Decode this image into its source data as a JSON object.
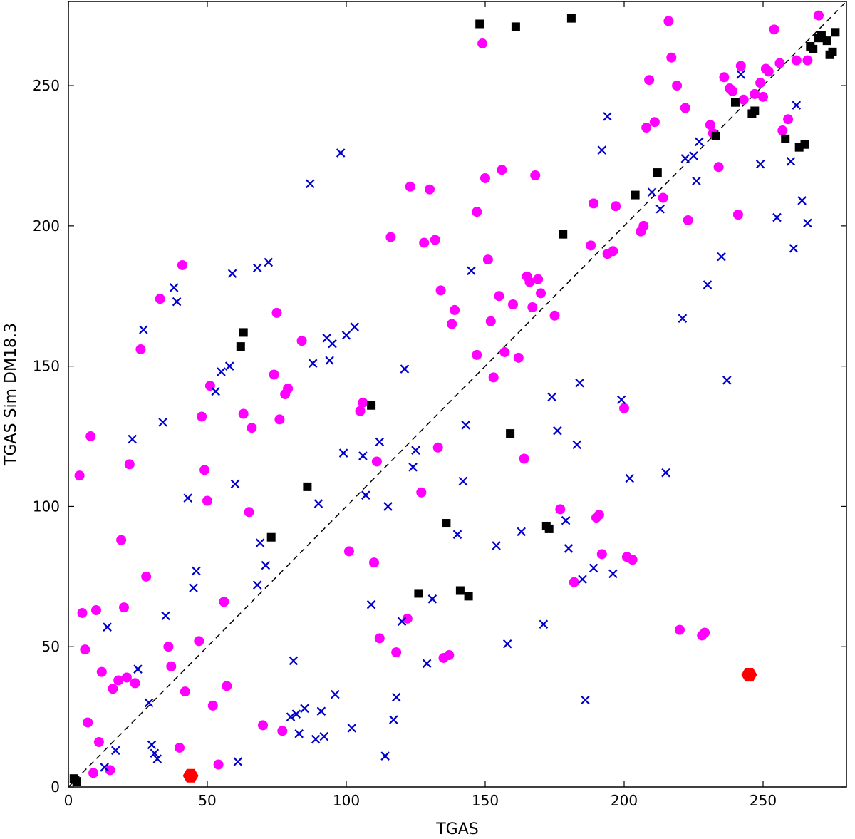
{
  "chart_data": {
    "type": "scatter",
    "xlabel": "TGAS",
    "ylabel": "TGAS Sim DM18.3",
    "xlim": [
      0,
      280
    ],
    "ylim": [
      0,
      280
    ],
    "xticks": [
      0,
      50,
      100,
      150,
      200,
      250
    ],
    "yticks": [
      0,
      50,
      100,
      150,
      200,
      250
    ],
    "grid": false,
    "legend": "none",
    "reference_line": {
      "style": "dashed",
      "color": "#000000",
      "from": [
        0,
        0
      ],
      "to": [
        280,
        280
      ]
    },
    "colors": {
      "circle": "#ff00ff",
      "cross": "#0000cc",
      "square": "#000000",
      "hexagon": "#ff0000"
    },
    "series": [
      {
        "marker": "circle",
        "points": [
          [
            4,
            111
          ],
          [
            5,
            62
          ],
          [
            6,
            49
          ],
          [
            7,
            23
          ],
          [
            8,
            125
          ],
          [
            9,
            5
          ],
          [
            10,
            63
          ],
          [
            11,
            16
          ],
          [
            12,
            41
          ],
          [
            15,
            6
          ],
          [
            16,
            35
          ],
          [
            18,
            38
          ],
          [
            19,
            88
          ],
          [
            20,
            64
          ],
          [
            21,
            39
          ],
          [
            22,
            115
          ],
          [
            24,
            37
          ],
          [
            26,
            156
          ],
          [
            28,
            75
          ],
          [
            33,
            174
          ],
          [
            36,
            50
          ],
          [
            37,
            43
          ],
          [
            40,
            14
          ],
          [
            41,
            186
          ],
          [
            42,
            34
          ],
          [
            47,
            52
          ],
          [
            48,
            132
          ],
          [
            49,
            113
          ],
          [
            50,
            102
          ],
          [
            51,
            143
          ],
          [
            52,
            29
          ],
          [
            54,
            8
          ],
          [
            56,
            66
          ],
          [
            57,
            36
          ],
          [
            63,
            133
          ],
          [
            65,
            98
          ],
          [
            66,
            128
          ],
          [
            70,
            22
          ],
          [
            74,
            147
          ],
          [
            75,
            169
          ],
          [
            76,
            131
          ],
          [
            78,
            140
          ],
          [
            79,
            142
          ],
          [
            77,
            20
          ],
          [
            84,
            159
          ],
          [
            101,
            84
          ],
          [
            105,
            134
          ],
          [
            106,
            137
          ],
          [
            110,
            80
          ],
          [
            111,
            116
          ],
          [
            112,
            53
          ],
          [
            116,
            196
          ],
          [
            118,
            48
          ],
          [
            122,
            60
          ],
          [
            123,
            214
          ],
          [
            127,
            105
          ],
          [
            128,
            194
          ],
          [
            130,
            213
          ],
          [
            132,
            195
          ],
          [
            133,
            121
          ],
          [
            134,
            177
          ],
          [
            135,
            46
          ],
          [
            137,
            47
          ],
          [
            138,
            165
          ],
          [
            139,
            170
          ],
          [
            147,
            154
          ],
          [
            147,
            205
          ],
          [
            149,
            265
          ],
          [
            150,
            217
          ],
          [
            151,
            188
          ],
          [
            152,
            166
          ],
          [
            153,
            146
          ],
          [
            155,
            175
          ],
          [
            156,
            220
          ],
          [
            157,
            155
          ],
          [
            160,
            172
          ],
          [
            162,
            153
          ],
          [
            164,
            117
          ],
          [
            165,
            182
          ],
          [
            166,
            180
          ],
          [
            167,
            171
          ],
          [
            168,
            218
          ],
          [
            169,
            181
          ],
          [
            170,
            176
          ],
          [
            175,
            168
          ],
          [
            177,
            99
          ],
          [
            182,
            73
          ],
          [
            188,
            193
          ],
          [
            189,
            208
          ],
          [
            190,
            96
          ],
          [
            191,
            97
          ],
          [
            192,
            83
          ],
          [
            194,
            190
          ],
          [
            196,
            191
          ],
          [
            197,
            207
          ],
          [
            200,
            135
          ],
          [
            201,
            82
          ],
          [
            203,
            81
          ],
          [
            206,
            198
          ],
          [
            207,
            200
          ],
          [
            208,
            235
          ],
          [
            209,
            252
          ],
          [
            211,
            237
          ],
          [
            214,
            210
          ],
          [
            216,
            273
          ],
          [
            217,
            260
          ],
          [
            219,
            250
          ],
          [
            220,
            56
          ],
          [
            222,
            242
          ],
          [
            223,
            202
          ],
          [
            228,
            54
          ],
          [
            229,
            55
          ],
          [
            231,
            236
          ],
          [
            232,
            233
          ],
          [
            234,
            221
          ],
          [
            236,
            253
          ],
          [
            238,
            249
          ],
          [
            239,
            248
          ],
          [
            241,
            204
          ],
          [
            242,
            257
          ],
          [
            243,
            245
          ],
          [
            247,
            247
          ],
          [
            249,
            251
          ],
          [
            250,
            246
          ],
          [
            251,
            256
          ],
          [
            252,
            255
          ],
          [
            254,
            270
          ],
          [
            256,
            258
          ],
          [
            257,
            234
          ],
          [
            259,
            238
          ],
          [
            262,
            259
          ],
          [
            266,
            259
          ],
          [
            270,
            275
          ]
        ]
      },
      {
        "marker": "cross",
        "points": [
          [
            14,
            57
          ],
          [
            13,
            7
          ],
          [
            17,
            13
          ],
          [
            23,
            124
          ],
          [
            25,
            42
          ],
          [
            27,
            163
          ],
          [
            29,
            30
          ],
          [
            30,
            15
          ],
          [
            31,
            12
          ],
          [
            32,
            10
          ],
          [
            34,
            130
          ],
          [
            35,
            61
          ],
          [
            38,
            178
          ],
          [
            39,
            173
          ],
          [
            43,
            103
          ],
          [
            45,
            71
          ],
          [
            46,
            77
          ],
          [
            53,
            141
          ],
          [
            55,
            148
          ],
          [
            58,
            150
          ],
          [
            59,
            183
          ],
          [
            60,
            108
          ],
          [
            61,
            9
          ],
          [
            68,
            185
          ],
          [
            68,
            72
          ],
          [
            69,
            87
          ],
          [
            71,
            79
          ],
          [
            72,
            187
          ],
          [
            81,
            45
          ],
          [
            80,
            25
          ],
          [
            82,
            26
          ],
          [
            83,
            19
          ],
          [
            85,
            28
          ],
          [
            87,
            215
          ],
          [
            88,
            151
          ],
          [
            89,
            17
          ],
          [
            90,
            101
          ],
          [
            91,
            27
          ],
          [
            92,
            18
          ],
          [
            93,
            160
          ],
          [
            94,
            152
          ],
          [
            95,
            158
          ],
          [
            96,
            33
          ],
          [
            98,
            226
          ],
          [
            99,
            119
          ],
          [
            100,
            161
          ],
          [
            102,
            21
          ],
          [
            103,
            164
          ],
          [
            106,
            118
          ],
          [
            107,
            104
          ],
          [
            109,
            65
          ],
          [
            112,
            123
          ],
          [
            114,
            11
          ],
          [
            115,
            100
          ],
          [
            117,
            24
          ],
          [
            118,
            32
          ],
          [
            120,
            59
          ],
          [
            121,
            149
          ],
          [
            124,
            114
          ],
          [
            125,
            120
          ],
          [
            129,
            44
          ],
          [
            131,
            67
          ],
          [
            140,
            90
          ],
          [
            142,
            109
          ],
          [
            143,
            129
          ],
          [
            145,
            184
          ],
          [
            154,
            86
          ],
          [
            158,
            51
          ],
          [
            163,
            91
          ],
          [
            171,
            58
          ],
          [
            174,
            139
          ],
          [
            176,
            127
          ],
          [
            179,
            95
          ],
          [
            180,
            85
          ],
          [
            183,
            122
          ],
          [
            184,
            144
          ],
          [
            185,
            74
          ],
          [
            186,
            31
          ],
          [
            189,
            78
          ],
          [
            192,
            227
          ],
          [
            194,
            239
          ],
          [
            196,
            76
          ],
          [
            199,
            138
          ],
          [
            202,
            110
          ],
          [
            210,
            212
          ],
          [
            213,
            206
          ],
          [
            215,
            112
          ],
          [
            221,
            167
          ],
          [
            222,
            224
          ],
          [
            225,
            225
          ],
          [
            226,
            216
          ],
          [
            227,
            230
          ],
          [
            230,
            179
          ],
          [
            235,
            189
          ],
          [
            237,
            145
          ],
          [
            242,
            254
          ],
          [
            249,
            222
          ],
          [
            255,
            203
          ],
          [
            260,
            223
          ],
          [
            261,
            192
          ],
          [
            262,
            243
          ],
          [
            264,
            209
          ],
          [
            266,
            201
          ]
        ]
      },
      {
        "marker": "square",
        "points": [
          [
            2,
            3
          ],
          [
            3,
            2
          ],
          [
            62,
            157
          ],
          [
            63,
            162
          ],
          [
            73,
            89
          ],
          [
            86,
            107
          ],
          [
            109,
            136
          ],
          [
            126,
            69
          ],
          [
            136,
            94
          ],
          [
            141,
            70
          ],
          [
            144,
            68
          ],
          [
            148,
            272
          ],
          [
            159,
            126
          ],
          [
            161,
            271
          ],
          [
            172,
            93
          ],
          [
            173,
            92
          ],
          [
            178,
            197
          ],
          [
            181,
            274
          ],
          [
            204,
            211
          ],
          [
            212,
            219
          ],
          [
            233,
            232
          ],
          [
            240,
            244
          ],
          [
            246,
            240
          ],
          [
            247,
            241
          ],
          [
            258,
            231
          ],
          [
            263,
            228
          ],
          [
            265,
            229
          ],
          [
            267,
            264
          ],
          [
            268,
            263
          ],
          [
            270,
            267
          ],
          [
            271,
            268
          ],
          [
            273,
            266
          ],
          [
            274,
            261
          ],
          [
            275,
            262
          ],
          [
            276,
            269
          ]
        ]
      },
      {
        "marker": "hexagon",
        "points": [
          [
            44,
            4
          ],
          [
            245,
            40
          ]
        ]
      }
    ]
  }
}
